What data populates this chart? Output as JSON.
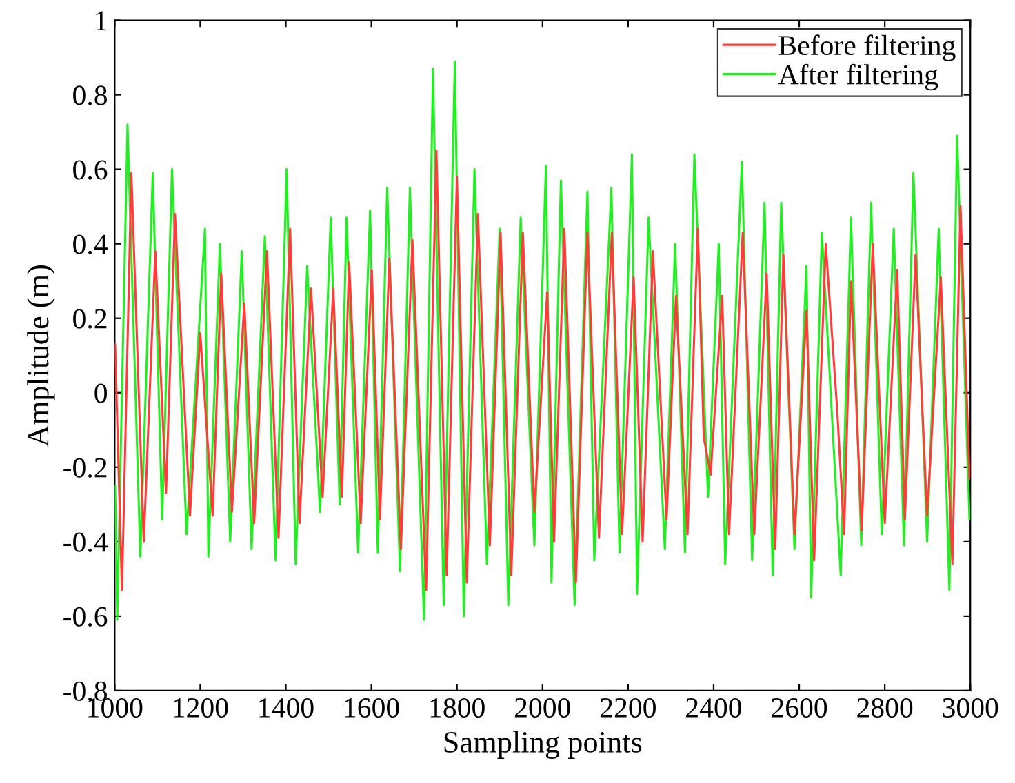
{
  "chart_data": {
    "type": "line",
    "xlabel": "Sampling points",
    "ylabel": "Amplitude (m)",
    "xlim": [
      1000,
      3000
    ],
    "ylim": [
      -0.8,
      1
    ],
    "xticks": [
      1000,
      1200,
      1400,
      1600,
      1800,
      2000,
      2200,
      2400,
      2600,
      2800,
      3000
    ],
    "yticks": [
      -0.8,
      -0.6,
      -0.4,
      -0.2,
      0,
      0.2,
      0.4,
      0.6,
      0.8,
      1
    ],
    "grid": false,
    "legend": "top right",
    "marker": "none",
    "line_style": "solid",
    "series": [
      {
        "name": "Before filtering",
        "color": "#ff3b3b",
        "x": [
          1001,
          1017,
          1039,
          1068,
          1095,
          1120,
          1141,
          1176,
          1200,
          1229,
          1249,
          1274,
          1303,
          1326,
          1356,
          1383,
          1410,
          1432,
          1459,
          1486,
          1511,
          1531,
          1548,
          1575,
          1601,
          1620,
          1642,
          1669,
          1696,
          1728,
          1752,
          1776,
          1800,
          1823,
          1849,
          1877,
          1902,
          1927,
          1954,
          1981,
          2011,
          2027,
          2051,
          2078,
          2105,
          2132,
          2162,
          2186,
          2213,
          2234,
          2258,
          2290,
          2312,
          2339,
          2363,
          2377,
          2393,
          2420,
          2436,
          2468,
          2495,
          2524,
          2544,
          2563,
          2589,
          2617,
          2635,
          2662,
          2689,
          2705,
          2721,
          2746,
          2772,
          2800,
          2829,
          2847,
          2872,
          2899,
          2931,
          2958,
          2977,
          2998
        ],
        "values": [
          0.13,
          -0.53,
          0.59,
          -0.4,
          0.38,
          -0.27,
          0.48,
          -0.33,
          0.16,
          -0.33,
          0.32,
          -0.32,
          0.24,
          -0.35,
          0.38,
          -0.39,
          0.44,
          -0.35,
          0.28,
          -0.28,
          0.28,
          -0.28,
          0.35,
          -0.35,
          0.33,
          -0.34,
          0.36,
          -0.42,
          0.41,
          -0.53,
          0.65,
          -0.49,
          0.58,
          -0.51,
          0.48,
          -0.41,
          0.43,
          -0.49,
          0.43,
          -0.32,
          0.27,
          -0.4,
          0.44,
          -0.51,
          0.43,
          -0.39,
          0.43,
          -0.38,
          0.31,
          -0.4,
          0.38,
          -0.34,
          0.26,
          -0.38,
          0.44,
          -0.12,
          -0.22,
          0.26,
          -0.38,
          0.43,
          -0.38,
          0.32,
          -0.42,
          0.37,
          -0.38,
          0.22,
          -0.45,
          0.4,
          -0.05,
          -0.38,
          0.3,
          -0.37,
          0.4,
          -0.35,
          0.33,
          -0.34,
          0.37,
          -0.33,
          0.31,
          -0.46,
          0.5,
          -0.23
        ]
      },
      {
        "name": "After filtering",
        "color": "#22ee22",
        "x": [
          1001,
          1006,
          1030,
          1060,
          1089,
          1111,
          1134,
          1168,
          1211,
          1219,
          1246,
          1270,
          1297,
          1320,
          1351,
          1376,
          1402,
          1423,
          1450,
          1480,
          1505,
          1526,
          1542,
          1569,
          1597,
          1615,
          1637,
          1667,
          1690,
          1723,
          1744,
          1769,
          1795,
          1816,
          1841,
          1870,
          1900,
          1920,
          1949,
          1981,
          2008,
          2021,
          2043,
          2075,
          2105,
          2121,
          2161,
          2180,
          2209,
          2221,
          2248,
          2286,
          2310,
          2333,
          2355,
          2387,
          2412,
          2427,
          2466,
          2490,
          2519,
          2538,
          2558,
          2589,
          2617,
          2628,
          2653,
          2697,
          2721,
          2745,
          2768,
          2793,
          2821,
          2845,
          2867,
          2899,
          2926,
          2951,
          2969,
          2998
        ],
        "values": [
          -0.25,
          -0.61,
          0.72,
          -0.44,
          0.59,
          -0.34,
          0.6,
          -0.38,
          0.44,
          -0.44,
          0.4,
          -0.4,
          0.38,
          -0.42,
          0.42,
          -0.45,
          0.6,
          -0.46,
          0.34,
          -0.32,
          0.47,
          -0.3,
          0.47,
          -0.43,
          0.49,
          -0.43,
          0.55,
          -0.48,
          0.55,
          -0.61,
          0.87,
          -0.57,
          0.89,
          -0.6,
          0.6,
          -0.46,
          0.44,
          -0.57,
          0.47,
          -0.41,
          0.61,
          -0.51,
          0.57,
          -0.57,
          0.54,
          -0.45,
          0.55,
          -0.43,
          0.64,
          -0.54,
          0.47,
          -0.42,
          0.4,
          -0.43,
          0.64,
          -0.28,
          0.4,
          -0.46,
          0.62,
          -0.45,
          0.51,
          -0.49,
          0.51,
          -0.42,
          0.34,
          -0.55,
          0.43,
          -0.49,
          0.47,
          -0.41,
          0.51,
          -0.38,
          0.44,
          -0.41,
          0.59,
          -0.4,
          0.44,
          -0.53,
          0.69,
          -0.34
        ]
      }
    ]
  }
}
